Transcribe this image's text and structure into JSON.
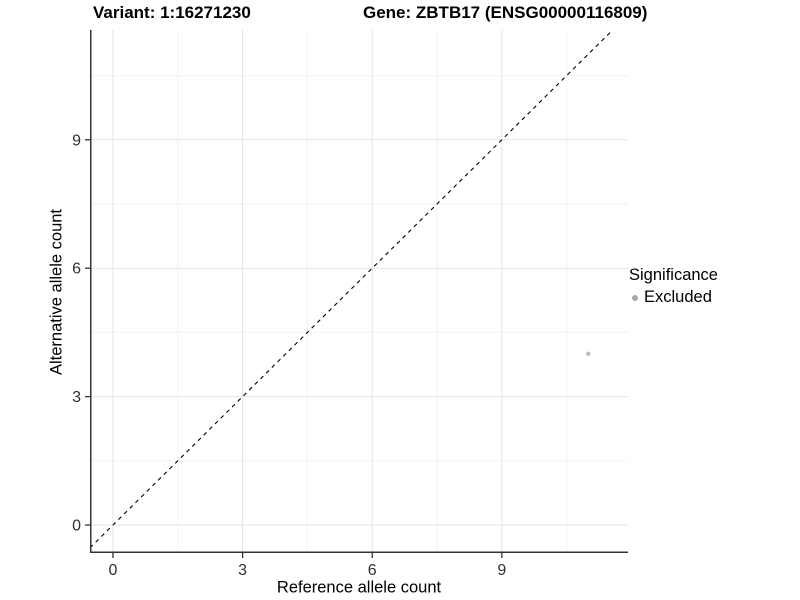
{
  "header": {
    "variant_title": "Variant: 1:16271230",
    "gene_title": "Gene: ZBTB17 (ENSG00000116809)"
  },
  "chart_data": {
    "type": "scatter",
    "title": "Variant: 1:16271230  /  Gene: ZBTB17 (ENSG00000116809)",
    "xlabel": "Reference allele count",
    "ylabel": "Alternative allele count",
    "xlim": [
      -0.532,
      11.92
    ],
    "ylim": [
      -0.654,
      11.565
    ],
    "x_ticks": {
      "values": [
        0,
        3,
        6,
        9
      ],
      "labels": [
        "0",
        "3",
        "6",
        "9"
      ]
    },
    "y_ticks": {
      "values": [
        0,
        3,
        6,
        9
      ],
      "labels": [
        "0",
        "3",
        "6",
        "9"
      ]
    },
    "x_minor": [
      1.5,
      4.5,
      7.5,
      10.5
    ],
    "y_minor": [
      1.5,
      4.5,
      7.5,
      10.5
    ],
    "grid": "major+minor",
    "series": [
      {
        "name": "Excluded",
        "color": "#bcbcbc",
        "point_radius": 2.2,
        "points": [
          {
            "x": 11,
            "y": 4
          }
        ]
      }
    ],
    "reference_line": {
      "kind": "abline",
      "slope": 1,
      "intercept": 0,
      "style": "dashed",
      "color": "#000000"
    },
    "legend": {
      "title": "Significance",
      "position": "right",
      "entries": [
        {
          "label": "Excluded",
          "color": "#aaaaaa"
        }
      ]
    },
    "style": {
      "grid_major": "#e4e4e4",
      "grid_minor": "#f2f2f2",
      "axis_line": "#333333",
      "tick_text": "#303030",
      "background": "#ffffff"
    }
  }
}
